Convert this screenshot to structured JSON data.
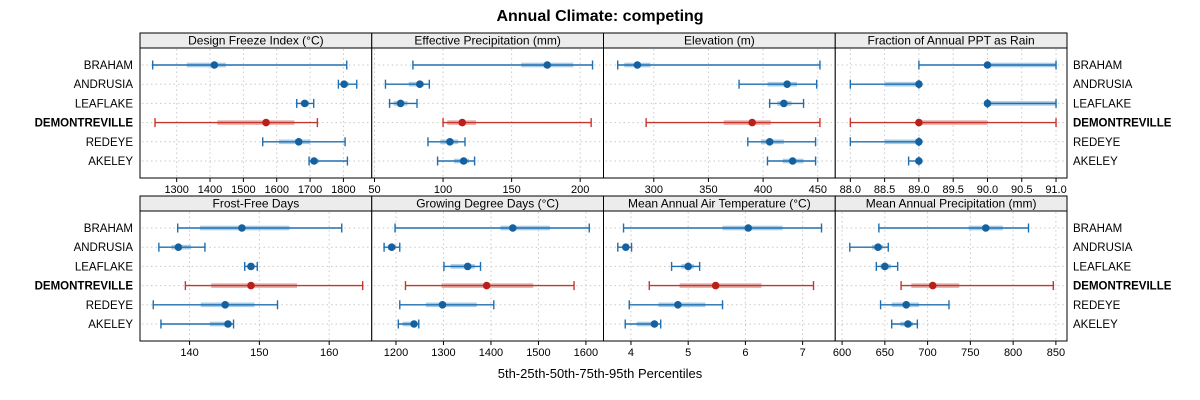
{
  "chart_data": {
    "type": "trellis-dotplot-percentiles",
    "title": "Annual Climate: competing",
    "xlabel": "5th-25th-50th-75th-95th Percentiles",
    "percentiles": [
      5,
      25,
      50,
      75,
      95
    ],
    "categories": [
      "BRAHAM",
      "ANDRUSIA",
      "LEAFLAKE",
      "DEMONTREVILLE",
      "REDEYE",
      "AKELEY"
    ],
    "highlight_category": "DEMONTREVILLE",
    "layout": {
      "rows": 2,
      "cols": 4
    },
    "grid": "dotted",
    "legend": "none",
    "panels": [
      {
        "title": "Design Freeze Index (°C)",
        "xlim": [
          1190,
          1885
        ],
        "ticks": [
          1300,
          1400,
          1500,
          1600,
          1700,
          1800
        ],
        "tick_labels": [
          "1300",
          "1400",
          "1500",
          "1600",
          "1700",
          "1800"
        ],
        "series": [
          [
            1228,
            1330,
            1413,
            1447,
            1810
          ],
          [
            1785,
            1793,
            1802,
            1816,
            1840
          ],
          [
            1660,
            1672,
            1684,
            1697,
            1711
          ],
          [
            1235,
            1422,
            1568,
            1653,
            1722
          ],
          [
            1558,
            1607,
            1666,
            1700,
            1805
          ],
          [
            1697,
            1703,
            1712,
            1726,
            1812
          ]
        ]
      },
      {
        "title": "Effective Precipitation (mm)",
        "xlim": [
          48,
          217
        ],
        "ticks": [
          50,
          100,
          150,
          200
        ],
        "tick_labels": [
          "50",
          "100",
          "150",
          "200"
        ],
        "series": [
          [
            78,
            157,
            176,
            195,
            209
          ],
          [
            58,
            75,
            83,
            86,
            90
          ],
          [
            61,
            64,
            69,
            74,
            81
          ],
          [
            100,
            103,
            114,
            124,
            208
          ],
          [
            89,
            98,
            105,
            111,
            116
          ],
          [
            96,
            108,
            115,
            119,
            123
          ]
        ]
      },
      {
        "title": "Elevation (m)",
        "xlim": [
          254,
          466
        ],
        "ticks": [
          300,
          350,
          400,
          450
        ],
        "tick_labels": [
          "300",
          "350",
          "400",
          "450"
        ],
        "series": [
          [
            267,
            273,
            285,
            297,
            452
          ],
          [
            378,
            404,
            422,
            431,
            449
          ],
          [
            406,
            413,
            419,
            426,
            437
          ],
          [
            293,
            364,
            390,
            407,
            452
          ],
          [
            386,
            398,
            406,
            419,
            448
          ],
          [
            404,
            418,
            427,
            437,
            448
          ]
        ]
      },
      {
        "title": "Fraction of Annual PPT as Rain",
        "xlim": [
          87.78,
          91.16
        ],
        "ticks": [
          88.0,
          88.5,
          89.0,
          89.5,
          90.0,
          90.5,
          91.0
        ],
        "tick_labels": [
          "88.0",
          "88.5",
          "89.0",
          "89.5",
          "90.0",
          "90.5",
          "91.0"
        ],
        "series": [
          [
            89.0,
            90.0,
            90.0,
            91.0,
            91.0
          ],
          [
            88.0,
            88.5,
            89.0,
            89.0,
            89.0
          ],
          [
            90.0,
            90.0,
            90.0,
            91.0,
            91.0
          ],
          [
            88.0,
            89.0,
            89.0,
            90.0,
            91.0
          ],
          [
            88.0,
            88.5,
            89.0,
            89.0,
            89.0
          ],
          [
            88.85,
            88.95,
            89.0,
            89.0,
            89.0
          ]
        ]
      },
      {
        "title": "Frost-Free Days",
        "xlim": [
          132.9,
          166.1
        ],
        "ticks": [
          140,
          150,
          160
        ],
        "tick_labels": [
          "140",
          "150",
          "160"
        ],
        "series": [
          [
            138.3,
            141.5,
            147.5,
            154.3,
            161.8
          ],
          [
            135.6,
            137.4,
            138.4,
            140.2,
            142.2
          ],
          [
            147.9,
            148.3,
            148.8,
            149.3,
            149.7
          ],
          [
            139.4,
            143.1,
            148.8,
            155.4,
            164.8
          ],
          [
            134.8,
            141.6,
            145.1,
            149.3,
            152.6
          ],
          [
            135.9,
            142.9,
            145.5,
            146.0,
            146.3
          ]
        ]
      },
      {
        "title": "Growing Degree Days (°C)",
        "xlim": [
          1149,
          1637
        ],
        "ticks": [
          1200,
          1300,
          1400,
          1500,
          1600
        ],
        "tick_labels": [
          "1200",
          "1300",
          "1400",
          "1500",
          "1600"
        ],
        "series": [
          [
            1198,
            1420,
            1446,
            1524,
            1607
          ],
          [
            1175,
            1183,
            1191,
            1200,
            1208
          ],
          [
            1301,
            1315,
            1351,
            1366,
            1378
          ],
          [
            1220,
            1296,
            1391,
            1489,
            1575
          ],
          [
            1208,
            1263,
            1298,
            1370,
            1406
          ],
          [
            1205,
            1214,
            1238,
            1245,
            1248
          ]
        ]
      },
      {
        "title": "Mean Annual Air Temperature (°C)",
        "xlim": [
          3.52,
          7.57
        ],
        "ticks": [
          4,
          5,
          6,
          7
        ],
        "tick_labels": [
          "4",
          "5",
          "6",
          "7"
        ],
        "series": [
          [
            3.87,
            5.6,
            6.05,
            6.65,
            7.33
          ],
          [
            3.77,
            3.85,
            3.91,
            3.96,
            4.01
          ],
          [
            4.71,
            4.88,
            5.0,
            5.1,
            5.2
          ],
          [
            4.32,
            4.85,
            5.48,
            6.28,
            7.19
          ],
          [
            3.97,
            4.48,
            4.82,
            5.3,
            5.6
          ],
          [
            3.9,
            4.1,
            4.41,
            4.47,
            4.52
          ]
        ]
      },
      {
        "title": "Mean Annual Precipitation (mm)",
        "xlim": [
          592,
          863
        ],
        "ticks": [
          600,
          650,
          700,
          750,
          800,
          850
        ],
        "tick_labels": [
          "600",
          "650",
          "700",
          "750",
          "800",
          "850"
        ],
        "series": [
          [
            643,
            748,
            768,
            788,
            818
          ],
          [
            609,
            635,
            642,
            648,
            654
          ],
          [
            640,
            645,
            650,
            657,
            665
          ],
          [
            669,
            681,
            706,
            737,
            847
          ],
          [
            645,
            658,
            675,
            690,
            725
          ],
          [
            658,
            668,
            677,
            683,
            688
          ]
        ]
      }
    ],
    "colors": {
      "series_main": "#1f6fb0",
      "series_band": "#a9cde6",
      "series_dot": "#15619f",
      "highlight_main": "#c4372f",
      "highlight_band": "#e7aeaa",
      "highlight_dot": "#b92019",
      "grid": "#c9c9c9",
      "strip_bg": "#ececec",
      "border": "#000000",
      "background": "#ffffff"
    }
  }
}
